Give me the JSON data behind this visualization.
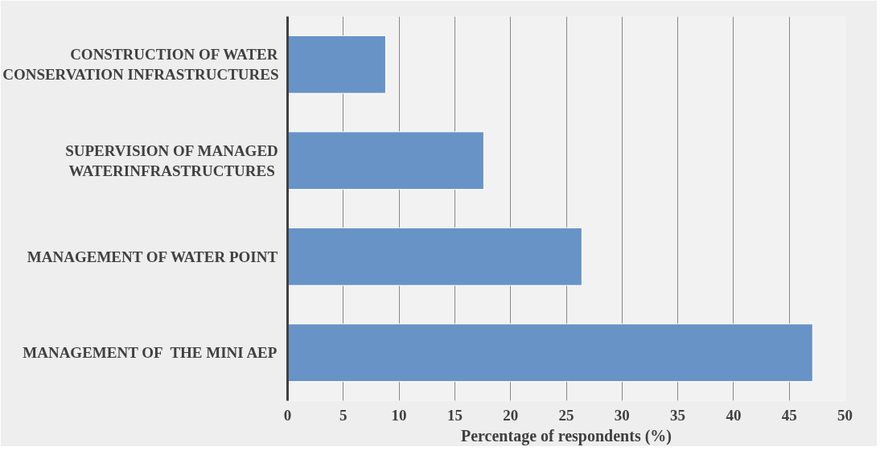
{
  "chart_data": {
    "type": "bar",
    "orientation": "horizontal",
    "xlabel": "Percentage of respondents (%)",
    "categories": [
      "CONSTRUCTION OF WATER\nCONSERVATION INFRASTRUCTURES",
      "SUPERVISION OF MANAGED\nWATERINFRASTRUCTURES ",
      "MANAGEMENT OF WATER POINT",
      "MANAGEMENT OF  THE MINI AEP"
    ],
    "values": [
      8.8,
      17.6,
      26.4,
      47.1
    ],
    "color": "#6893c7",
    "xlim": [
      0,
      50
    ],
    "xticks": [
      0,
      5,
      10,
      15,
      20,
      25,
      30,
      35,
      40,
      45,
      50
    ],
    "grid": "x"
  }
}
